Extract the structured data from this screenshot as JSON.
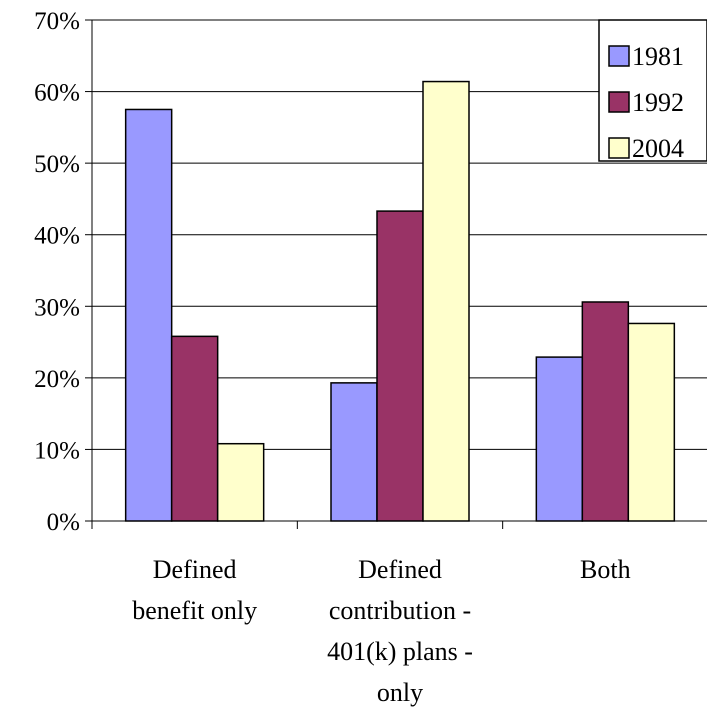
{
  "chart_data": {
    "type": "bar",
    "title": "",
    "xlabel": "",
    "ylabel": "",
    "categories": [
      [
        "Defined",
        "benefit only"
      ],
      [
        "Defined",
        "contribution -",
        "401(k) plans -",
        "only"
      ],
      [
        "Both"
      ]
    ],
    "series": [
      {
        "name": "1981",
        "color": "#9999ff",
        "values": [
          57.5,
          19.3,
          22.9
        ]
      },
      {
        "name": "1992",
        "color": "#993366",
        "values": [
          25.8,
          43.3,
          30.6
        ]
      },
      {
        "name": "2004",
        "color": "#ffffcc",
        "values": [
          10.8,
          61.4,
          27.6
        ]
      }
    ],
    "ylim": [
      0,
      70
    ],
    "yticks": [
      0,
      10,
      20,
      30,
      40,
      50,
      60,
      70
    ],
    "ytick_suffix": "%",
    "grid": true,
    "legend_position": "top-right"
  }
}
